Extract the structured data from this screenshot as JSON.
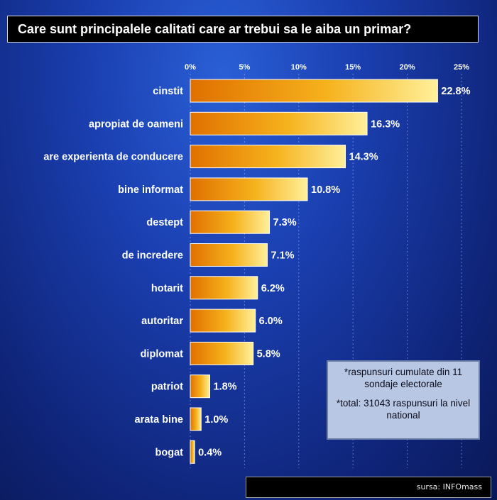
{
  "title": "Care sunt principalele calitati care ar trebui sa le aiba un primar?",
  "note": {
    "line1": "*raspunsuri cumulate din 11 sondaje electorale",
    "line2": "*total: 31043 raspunsuri la nivel national"
  },
  "source": "sursa: INFOmass",
  "chart_data": {
    "type": "bar",
    "orientation": "horizontal",
    "categories": [
      "cinstit",
      "apropiat de oameni",
      "are experienta de conducere",
      "bine informat",
      "destept",
      "de incredere",
      "hotarit",
      "autoritar",
      "diplomat",
      "patriot",
      "arata bine",
      "bogat"
    ],
    "values": [
      22.8,
      16.3,
      14.3,
      10.8,
      7.3,
      7.1,
      6.2,
      6.0,
      5.8,
      1.8,
      1.0,
      0.4
    ],
    "value_labels": [
      "22.8%",
      "16.3%",
      "14.3%",
      "10.8%",
      "7.3%",
      "7.1%",
      "6.2%",
      "6.0%",
      "5.8%",
      "1.8%",
      "1.0%",
      "0.4%"
    ],
    "xticks": [
      0,
      5,
      10,
      15,
      20,
      25
    ],
    "xtick_labels": [
      "0%",
      "5%",
      "10%",
      "15%",
      "20%",
      "25%"
    ],
    "xlim": [
      0,
      25
    ],
    "grid": true,
    "colors": {
      "bar_dark": "#e07000",
      "bar_light": "#fff09a",
      "text": "#ffffff"
    }
  }
}
